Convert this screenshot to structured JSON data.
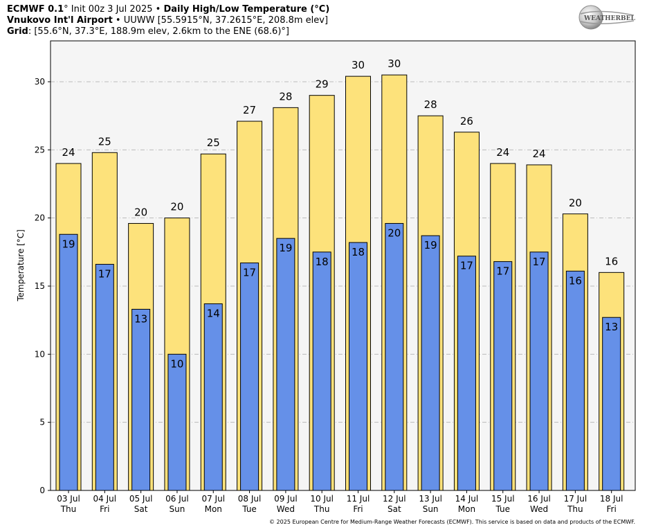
{
  "header": {
    "model": "ECMWF 0.1",
    "init_text": "° Init 00z 3 Jul 2025 • ",
    "product": "Daily High/Low Temperature (°C)",
    "station": "Vnukovo Int'l Airport",
    "station_info": " • UUWW [55.5915°N, 37.2615°E, 208.8m elev]",
    "grid_label": "Grid",
    "grid_info": ": [55.6°N, 37.3°E, 188.9m elev, 2.6km to the ENE (68.6)°]"
  },
  "logo": {
    "text": "WEATHERBELL",
    "icon": "weatherbell-globe-logo"
  },
  "footer": {
    "credit": "© 2025 European Centre for Medium-Range Weather Forecasts (ECMWF). This service is based on data and products of the ECMWF."
  },
  "colors": {
    "high": "#fde27b",
    "low": "#6590e8",
    "plot_bg": "#f5f5f5",
    "grid": "#bbbbbb"
  },
  "chart_data": {
    "type": "bar",
    "ylabel": "Temperature [°C]",
    "ylim": [
      0,
      33
    ],
    "yticks": [
      0,
      5,
      10,
      15,
      20,
      25,
      30
    ],
    "grid": true,
    "categories": [
      "03 Jul",
      "04 Jul",
      "05 Jul",
      "06 Jul",
      "07 Jul",
      "08 Jul",
      "09 Jul",
      "10 Jul",
      "11 Jul",
      "12 Jul",
      "13 Jul",
      "14 Jul",
      "15 Jul",
      "16 Jul",
      "17 Jul",
      "18 Jul"
    ],
    "weekdays": [
      "Thu",
      "Fri",
      "Sat",
      "Sun",
      "Mon",
      "Tue",
      "Wed",
      "Thu",
      "Fri",
      "Sat",
      "Sun",
      "Mon",
      "Tue",
      "Wed",
      "Thu",
      "Fri"
    ],
    "series": [
      {
        "values": [
          24.0,
          24.8,
          19.6,
          20.0,
          24.7,
          27.1,
          28.1,
          29.0,
          30.4,
          30.5,
          27.5,
          26.3,
          24.0,
          23.9,
          20.3,
          16.0
        ],
        "labels": [
          "24",
          "25",
          "20",
          "20",
          "25",
          "27",
          "28",
          "29",
          "30",
          "30",
          "28",
          "26",
          "24",
          "24",
          "20",
          "16"
        ]
      },
      {
        "values": [
          18.8,
          16.6,
          13.3,
          10.0,
          13.7,
          16.7,
          18.5,
          17.5,
          18.2,
          19.6,
          18.7,
          17.2,
          16.8,
          17.5,
          16.1,
          12.7
        ],
        "labels": [
          "19",
          "17",
          "13",
          "10",
          "14",
          "17",
          "19",
          "18",
          "18",
          "20",
          "19",
          "17",
          "17",
          "17",
          "16",
          "13"
        ]
      }
    ]
  }
}
